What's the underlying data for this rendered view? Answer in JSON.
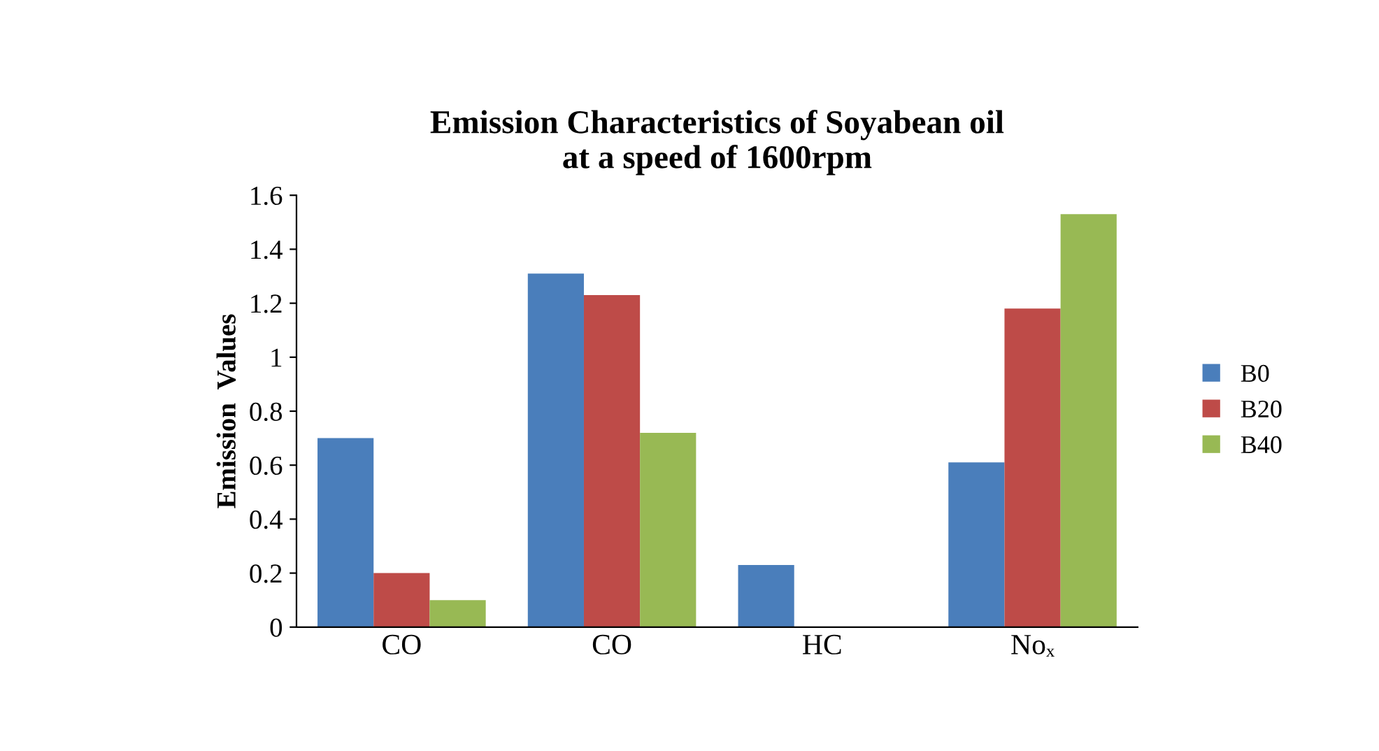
{
  "chart_data": {
    "type": "bar",
    "title": "Emission Characteristics of Soyabean oil\nat a speed of 1600rpm",
    "ylabel": "Emission  Values",
    "categories": [
      "CO",
      "CO",
      "HC",
      "Noₓ"
    ],
    "series": [
      {
        "name": "B0",
        "color": "#4a7ebb",
        "values": [
          0.7,
          1.31,
          0.23,
          0.61
        ]
      },
      {
        "name": "B20",
        "color": "#be4b48",
        "values": [
          0.2,
          1.23,
          null,
          1.18
        ]
      },
      {
        "name": "B40",
        "color": "#98b954",
        "values": [
          0.1,
          0.72,
          null,
          1.53
        ]
      }
    ],
    "ylim": [
      0,
      1.6
    ],
    "yticks": [
      {
        "value": 0,
        "label": "0"
      },
      0.2,
      0.4,
      0.6,
      0.8,
      {
        "value": 1,
        "label": "1"
      },
      1.2,
      1.4,
      1.6
    ],
    "grid": false,
    "legend": "right"
  }
}
